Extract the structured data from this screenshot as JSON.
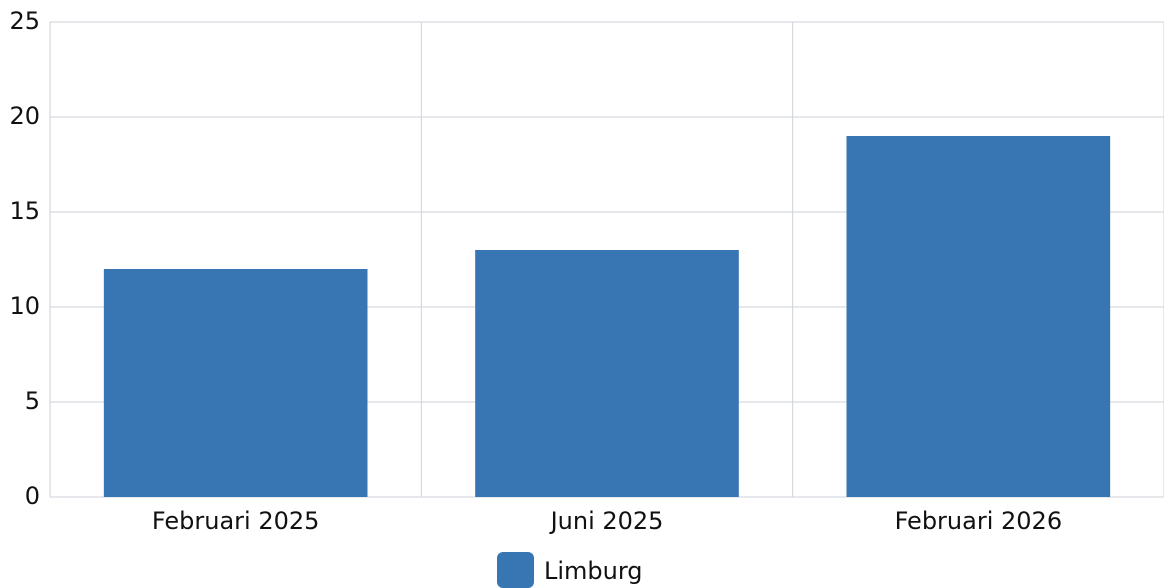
{
  "chart_data": {
    "type": "bar",
    "categories": [
      "Februari 2025",
      "Juni 2025",
      "Februari 2026"
    ],
    "series": [
      {
        "name": "Limburg",
        "color": "#3776b3",
        "values": [
          12,
          13,
          19
        ]
      }
    ],
    "ylim": [
      0,
      25
    ],
    "yticks": [
      0,
      5,
      10,
      15,
      20,
      25
    ],
    "grid": true,
    "legend": "bottom"
  }
}
